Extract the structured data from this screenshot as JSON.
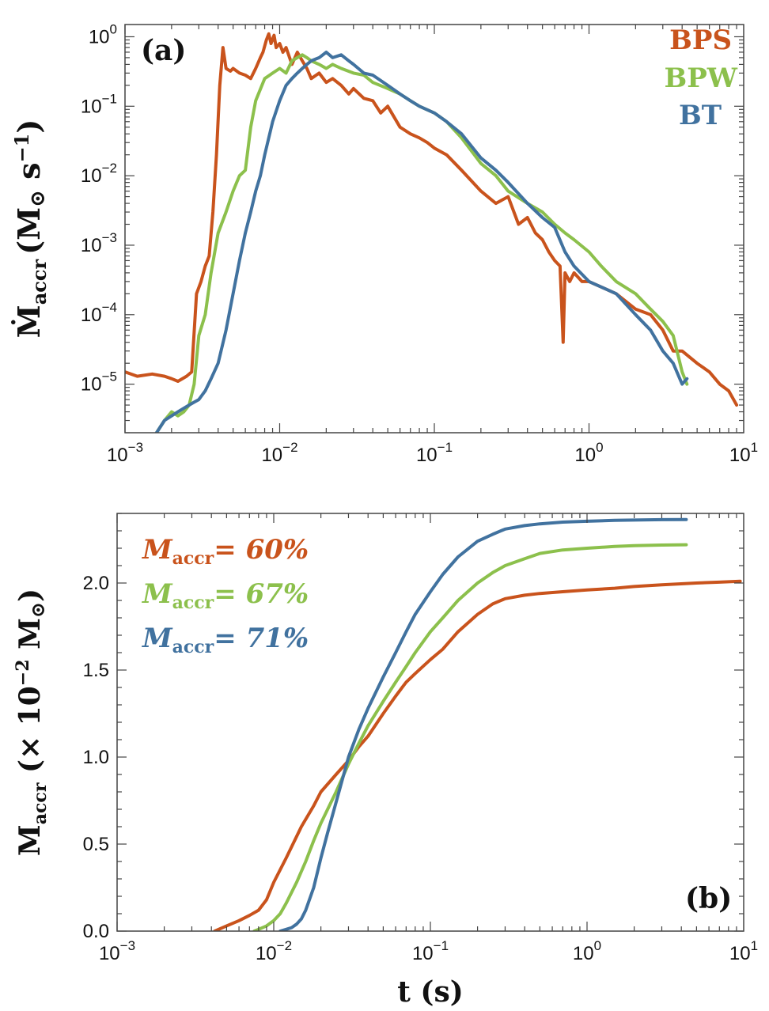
{
  "chart_data": [
    {
      "type": "line",
      "panel_label": "(a)",
      "x_scale": "log",
      "y_scale": "log",
      "xlim": [
        0.001,
        10
      ],
      "ylim": [
        2e-06,
        1.5
      ],
      "xlabel": "",
      "ylabel_main": "Ṁ",
      "ylabel_sub": "accr",
      "ylabel_units_open": "(M",
      "ylabel_units_sun": "⊙",
      "ylabel_units_s": " s",
      "ylabel_units_exp": "−1",
      "ylabel_units_close": ")",
      "x_ticks": [
        {
          "value": 0.001,
          "base": "10",
          "exp": "−3"
        },
        {
          "value": 0.01,
          "base": "10",
          "exp": "−2"
        },
        {
          "value": 0.1,
          "base": "10",
          "exp": "−1"
        },
        {
          "value": 1,
          "base": "10",
          "exp": "0"
        },
        {
          "value": 10,
          "base": "10",
          "exp": "1"
        }
      ],
      "y_ticks": [
        {
          "value": 1,
          "base": "10",
          "exp": "0"
        },
        {
          "value": 0.1,
          "base": "10",
          "exp": "−1"
        },
        {
          "value": 0.01,
          "base": "10",
          "exp": "−2"
        },
        {
          "value": 0.001,
          "base": "10",
          "exp": "−3"
        },
        {
          "value": 0.0001,
          "base": "10",
          "exp": "−4"
        },
        {
          "value": 1e-05,
          "base": "10",
          "exp": "−5"
        }
      ],
      "legend_position": "top-right",
      "legend": [
        "BPS",
        "BPW",
        "BT"
      ],
      "series": [
        {
          "name": "BPS",
          "color": "#c9531c",
          "x": [
            0.001,
            0.0012,
            0.0015,
            0.0018,
            0.002,
            0.0022,
            0.0025,
            0.0027,
            0.0029,
            0.0031,
            0.0033,
            0.0035,
            0.0037,
            0.0039,
            0.0041,
            0.0043,
            0.0045,
            0.0048,
            0.005,
            0.0055,
            0.006,
            0.0065,
            0.007,
            0.0075,
            0.0078,
            0.0082,
            0.0085,
            0.0088,
            0.0092,
            0.0095,
            0.01,
            0.0105,
            0.011,
            0.012,
            0.013,
            0.014,
            0.015,
            0.016,
            0.018,
            0.02,
            0.022,
            0.025,
            0.028,
            0.03,
            0.035,
            0.04,
            0.045,
            0.05,
            0.06,
            0.07,
            0.08,
            0.09,
            0.1,
            0.12,
            0.15,
            0.2,
            0.25,
            0.3,
            0.35,
            0.4,
            0.45,
            0.5,
            0.55,
            0.6,
            0.65,
            0.68,
            0.7,
            0.75,
            0.8,
            0.9,
            1.0,
            1.2,
            1.5,
            2.0,
            2.5,
            3.0,
            3.5,
            4.0,
            5.0,
            6.0,
            7.0,
            8.0,
            9.0
          ],
          "y": [
            1.5e-05,
            1.3e-05,
            1.4e-05,
            1.3e-05,
            1.2e-05,
            1.1e-05,
            1.3e-05,
            1.5e-05,
            0.0002,
            0.0003,
            0.0005,
            0.0007,
            0.003,
            0.02,
            0.2,
            0.7,
            0.35,
            0.32,
            0.35,
            0.3,
            0.28,
            0.25,
            0.35,
            0.5,
            0.6,
            0.9,
            1.1,
            0.8,
            1.05,
            0.7,
            0.8,
            0.6,
            0.7,
            0.4,
            0.6,
            0.45,
            0.35,
            0.25,
            0.3,
            0.22,
            0.25,
            0.2,
            0.15,
            0.18,
            0.13,
            0.12,
            0.08,
            0.1,
            0.05,
            0.04,
            0.035,
            0.03,
            0.025,
            0.02,
            0.012,
            0.006,
            0.004,
            0.005,
            0.002,
            0.0025,
            0.0015,
            0.0012,
            0.0008,
            0.0006,
            0.0005,
            4e-05,
            0.0004,
            0.0003,
            0.0004,
            0.0003,
            0.0003,
            0.00025,
            0.0002,
            0.00012,
            0.0001,
            6e-05,
            3e-05,
            3e-05,
            2e-05,
            1.5e-05,
            1e-05,
            8e-06,
            5e-06
          ]
        },
        {
          "name": "BPW",
          "color": "#8cc04c",
          "x": [
            0.0016,
            0.0018,
            0.002,
            0.0022,
            0.0024,
            0.0026,
            0.0028,
            0.003,
            0.0033,
            0.0036,
            0.004,
            0.0045,
            0.005,
            0.0055,
            0.006,
            0.0065,
            0.007,
            0.008,
            0.009,
            0.01,
            0.011,
            0.012,
            0.013,
            0.014,
            0.015,
            0.016,
            0.018,
            0.02,
            0.022,
            0.025,
            0.03,
            0.035,
            0.04,
            0.05,
            0.06,
            0.07,
            0.08,
            0.1,
            0.12,
            0.15,
            0.2,
            0.25,
            0.3,
            0.4,
            0.5,
            0.6,
            0.7,
            0.8,
            1.0,
            1.2,
            1.5,
            2.0,
            2.5,
            3.0,
            3.5,
            4.0,
            4.3
          ],
          "y": [
            2e-06,
            3e-06,
            4e-06,
            3.5e-06,
            4e-06,
            5e-06,
            1e-05,
            5e-05,
            0.0001,
            0.0004,
            0.0015,
            0.003,
            0.006,
            0.01,
            0.012,
            0.05,
            0.12,
            0.25,
            0.3,
            0.35,
            0.3,
            0.45,
            0.5,
            0.55,
            0.5,
            0.45,
            0.4,
            0.35,
            0.4,
            0.35,
            0.3,
            0.28,
            0.22,
            0.18,
            0.15,
            0.12,
            0.1,
            0.08,
            0.06,
            0.035,
            0.015,
            0.01,
            0.006,
            0.004,
            0.003,
            0.002,
            0.0015,
            0.0012,
            0.0008,
            0.0005,
            0.0003,
            0.0002,
            0.00012,
            8e-05,
            5e-05,
            1.5e-05,
            1e-05
          ]
        },
        {
          "name": "BT",
          "color": "#41729f",
          "x": [
            0.0016,
            0.0018,
            0.002,
            0.0022,
            0.0024,
            0.0026,
            0.0028,
            0.003,
            0.0033,
            0.0036,
            0.004,
            0.0045,
            0.005,
            0.0055,
            0.006,
            0.0065,
            0.007,
            0.0075,
            0.008,
            0.009,
            0.01,
            0.011,
            0.012,
            0.013,
            0.014,
            0.015,
            0.016,
            0.018,
            0.02,
            0.022,
            0.025,
            0.028,
            0.03,
            0.035,
            0.04,
            0.05,
            0.06,
            0.07,
            0.08,
            0.1,
            0.12,
            0.15,
            0.2,
            0.25,
            0.3,
            0.4,
            0.5,
            0.6,
            0.7,
            0.8,
            1.0,
            1.2,
            1.5,
            2.0,
            2.5,
            3.0,
            3.5,
            4.0,
            4.3
          ],
          "y": [
            2e-06,
            3e-06,
            3.5e-06,
            4e-06,
            4.5e-06,
            5e-06,
            5.5e-06,
            6e-06,
            8e-06,
            1.2e-05,
            2e-05,
            6e-05,
            0.0002,
            0.0006,
            0.0015,
            0.003,
            0.006,
            0.01,
            0.02,
            0.06,
            0.12,
            0.2,
            0.25,
            0.3,
            0.35,
            0.4,
            0.45,
            0.5,
            0.6,
            0.5,
            0.55,
            0.45,
            0.4,
            0.3,
            0.28,
            0.2,
            0.15,
            0.12,
            0.1,
            0.08,
            0.06,
            0.04,
            0.018,
            0.012,
            0.008,
            0.004,
            0.0025,
            0.0018,
            0.0008,
            0.0005,
            0.0003,
            0.00025,
            0.0002,
            0.0001,
            6e-05,
            3e-05,
            2e-05,
            1e-05,
            1.2e-05
          ]
        }
      ]
    },
    {
      "type": "line",
      "panel_label": "(b)",
      "x_scale": "log",
      "y_scale": "linear",
      "xlim": [
        0.001,
        10
      ],
      "ylim": [
        0.0,
        2.4
      ],
      "xlabel": "t (s)",
      "ylabel_main": "M",
      "ylabel_sub": "accr",
      "ylabel_units_open": " (× 10",
      "ylabel_units_exp": "−2",
      "ylabel_units_sun_prefix": " M",
      "ylabel_units_sun": "⊙",
      "ylabel_units_close": ")",
      "x_ticks": [
        {
          "value": 0.001,
          "base": "10",
          "exp": "−3"
        },
        {
          "value": 0.01,
          "base": "10",
          "exp": "−2"
        },
        {
          "value": 0.1,
          "base": "10",
          "exp": "−1"
        },
        {
          "value": 1,
          "base": "10",
          "exp": "0"
        },
        {
          "value": 10,
          "base": "10",
          "exp": "1"
        }
      ],
      "y_ticks": [
        "0.0",
        "0.5",
        "1.0",
        "1.5",
        "2.0"
      ],
      "legend_position": "top-left",
      "legend": [
        {
          "label_main": "M",
          "label_sub": "accr",
          "label_value": "= 60%",
          "color": "#c9531c"
        },
        {
          "label_main": "M",
          "label_sub": "accr",
          "label_value": "= 67%",
          "color": "#8cc04c"
        },
        {
          "label_main": "M",
          "label_sub": "accr",
          "label_value": "= 71%",
          "color": "#41729f"
        }
      ],
      "series": [
        {
          "name": "BPS",
          "color": "#c9531c",
          "x": [
            0.0042,
            0.005,
            0.006,
            0.007,
            0.008,
            0.009,
            0.01,
            0.012,
            0.015,
            0.018,
            0.02,
            0.025,
            0.03,
            0.035,
            0.04,
            0.05,
            0.06,
            0.07,
            0.08,
            0.1,
            0.12,
            0.15,
            0.2,
            0.25,
            0.3,
            0.4,
            0.5,
            0.7,
            1.0,
            1.5,
            2.0,
            3.0,
            5.0,
            7.0,
            9.5
          ],
          "y": [
            0.0,
            0.03,
            0.06,
            0.09,
            0.12,
            0.18,
            0.28,
            0.42,
            0.6,
            0.72,
            0.8,
            0.9,
            0.98,
            1.06,
            1.12,
            1.25,
            1.35,
            1.43,
            1.48,
            1.56,
            1.62,
            1.72,
            1.82,
            1.88,
            1.91,
            1.93,
            1.94,
            1.95,
            1.96,
            1.97,
            1.98,
            1.99,
            2.0,
            2.005,
            2.01
          ]
        },
        {
          "name": "BPW",
          "color": "#8cc04c",
          "x": [
            0.0075,
            0.008,
            0.009,
            0.01,
            0.011,
            0.012,
            0.014,
            0.016,
            0.018,
            0.02,
            0.025,
            0.03,
            0.035,
            0.04,
            0.05,
            0.06,
            0.07,
            0.08,
            0.1,
            0.12,
            0.15,
            0.2,
            0.25,
            0.3,
            0.4,
            0.5,
            0.7,
            1.0,
            1.5,
            2.0,
            3.0,
            4.3
          ],
          "y": [
            0.0,
            0.01,
            0.03,
            0.06,
            0.1,
            0.16,
            0.28,
            0.4,
            0.52,
            0.62,
            0.8,
            0.96,
            1.08,
            1.18,
            1.32,
            1.43,
            1.52,
            1.6,
            1.72,
            1.8,
            1.9,
            2.0,
            2.06,
            2.1,
            2.14,
            2.17,
            2.19,
            2.2,
            2.21,
            2.215,
            2.218,
            2.22
          ]
        },
        {
          "name": "BT",
          "color": "#41729f",
          "x": [
            0.011,
            0.012,
            0.013,
            0.014,
            0.015,
            0.016,
            0.018,
            0.02,
            0.022,
            0.025,
            0.028,
            0.03,
            0.035,
            0.04,
            0.05,
            0.06,
            0.07,
            0.08,
            0.1,
            0.12,
            0.15,
            0.2,
            0.25,
            0.3,
            0.4,
            0.5,
            0.7,
            1.0,
            1.5,
            2.0,
            3.0,
            4.3
          ],
          "y": [
            0.0,
            0.01,
            0.02,
            0.04,
            0.07,
            0.12,
            0.25,
            0.42,
            0.56,
            0.74,
            0.9,
            1.0,
            1.16,
            1.28,
            1.46,
            1.6,
            1.72,
            1.82,
            1.95,
            2.05,
            2.15,
            2.24,
            2.28,
            2.31,
            2.33,
            2.34,
            2.35,
            2.355,
            2.36,
            2.362,
            2.364,
            2.365
          ]
        }
      ]
    }
  ]
}
